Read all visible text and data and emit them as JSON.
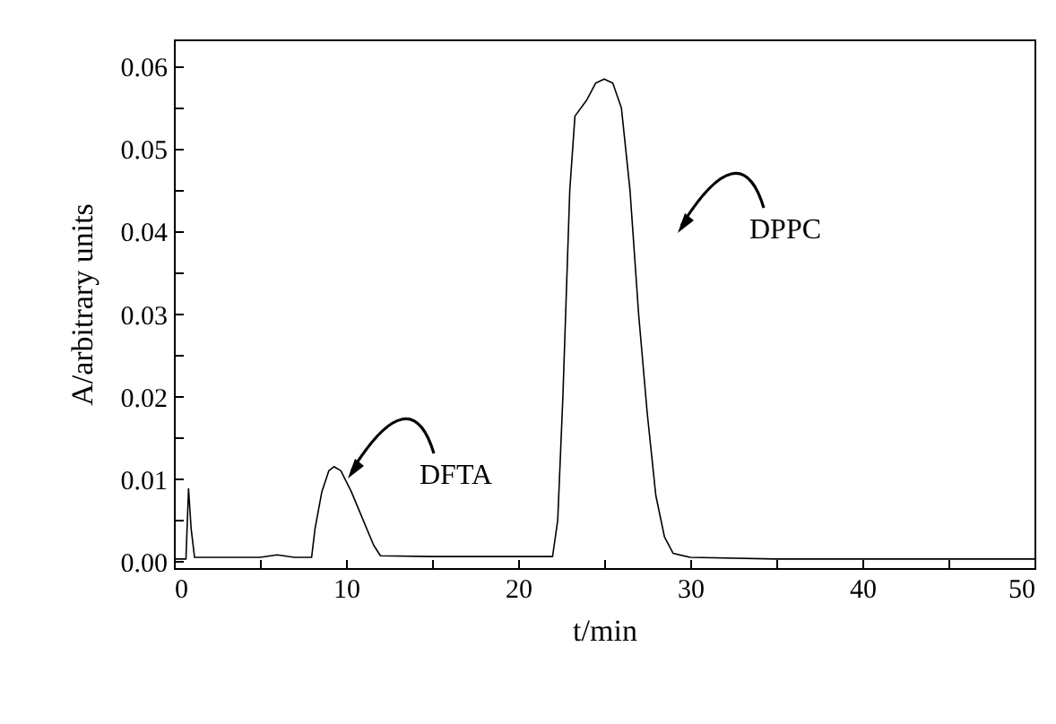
{
  "chart_data": {
    "type": "line",
    "xlabel": "t/min",
    "ylabel": "A/arbitrary units",
    "x": [
      0,
      0.7,
      0.85,
      1.0,
      1.2,
      5,
      6,
      7,
      8,
      8.2,
      8.6,
      9.0,
      9.3,
      9.7,
      10.3,
      11,
      11.6,
      12,
      15,
      20,
      22,
      22.3,
      22.6,
      23,
      23.3,
      24,
      24.5,
      25,
      25.5,
      26,
      26.5,
      27,
      27.5,
      28,
      28.5,
      29,
      30,
      35,
      40,
      50
    ],
    "series": [
      {
        "color": "#000000",
        "values": [
          0.0003,
          0.0003,
          0.0088,
          0.004,
          0.0005,
          0.0005,
          0.0008,
          0.0005,
          0.0005,
          0.004,
          0.0085,
          0.011,
          0.0115,
          0.011,
          0.0085,
          0.005,
          0.002,
          0.0007,
          0.0006,
          0.0006,
          0.0006,
          0.005,
          0.02,
          0.045,
          0.054,
          0.056,
          0.058,
          0.0585,
          0.058,
          0.055,
          0.045,
          0.03,
          0.018,
          0.008,
          0.003,
          0.001,
          0.0005,
          0.0003,
          0.0003,
          0.0003
        ]
      }
    ],
    "xlim": [
      0,
      50
    ],
    "ylim": [
      -0.0008,
      0.0633
    ],
    "xticks": [
      0,
      {
        "value": 5,
        "label": null
      },
      10,
      {
        "value": 15,
        "label": null
      },
      20,
      {
        "value": 25,
        "label": null
      },
      30,
      {
        "value": 35,
        "label": null
      },
      40,
      {
        "value": 45,
        "label": null
      },
      50
    ],
    "yticks": [
      {
        "value": 0,
        "label": "0.00"
      },
      {
        "value": 0.005,
        "label": null
      },
      {
        "value": 0.01,
        "label": "0.01"
      },
      {
        "value": 0.015,
        "label": null
      },
      {
        "value": 0.02,
        "label": "0.02"
      },
      {
        "value": 0.025,
        "label": null
      },
      {
        "value": 0.03,
        "label": "0.03"
      },
      {
        "value": 0.035,
        "label": null
      },
      {
        "value": 0.04,
        "label": "0.04"
      },
      {
        "value": 0.045,
        "label": null
      },
      {
        "value": 0.05,
        "label": "0.05"
      },
      {
        "value": 0.055,
        "label": null
      },
      {
        "value": 0.06,
        "label": "0.06"
      }
    ],
    "annotations": [
      "DFTA",
      "DPPC"
    ],
    "grid": false,
    "marker": "none",
    "line_style": "solid"
  }
}
